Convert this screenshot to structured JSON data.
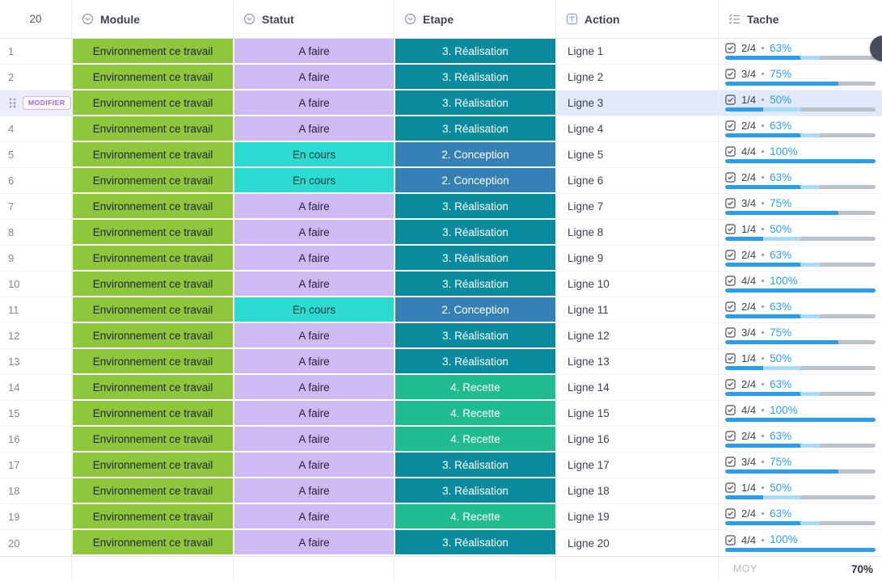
{
  "table": {
    "header": {
      "count": "20",
      "columns": [
        {
          "label": "Module",
          "icon": "dropdown-circle-icon"
        },
        {
          "label": "Statut",
          "icon": "dropdown-circle-icon"
        },
        {
          "label": "Etape",
          "icon": "dropdown-circle-icon"
        },
        {
          "label": "Action",
          "icon": "text-type-icon"
        },
        {
          "label": "Tache",
          "icon": "checklist-icon"
        }
      ]
    },
    "rows": [
      {
        "num": "1",
        "module": "Environnement ce travail",
        "statut": "A faire",
        "etape": "3. Réalisation",
        "action": "Ligne 1",
        "tache": {
          "fraction": "2/4",
          "percent_label": "63%",
          "done_pct": 50,
          "total_pct": 63
        }
      },
      {
        "num": "2",
        "module": "Environnement ce travail",
        "statut": "A faire",
        "etape": "3. Réalisation",
        "action": "Ligne 2",
        "tache": {
          "fraction": "3/4",
          "percent_label": "75%",
          "done_pct": 75,
          "total_pct": 75
        }
      },
      {
        "num": "3",
        "selected": true,
        "module": "Environnement ce travail",
        "statut": "A faire",
        "etape": "3. Réalisation",
        "action": "Ligne 3",
        "tache": {
          "fraction": "1/4",
          "percent_label": "50%",
          "done_pct": 25,
          "total_pct": 50
        }
      },
      {
        "num": "4",
        "module": "Environnement ce travail",
        "statut": "A faire",
        "etape": "3. Réalisation",
        "action": "Ligne 4",
        "tache": {
          "fraction": "2/4",
          "percent_label": "63%",
          "done_pct": 50,
          "total_pct": 63
        }
      },
      {
        "num": "5",
        "module": "Environnement ce travail",
        "statut": "En cours",
        "etape": "2. Conception",
        "action": "Ligne 5",
        "tache": {
          "fraction": "4/4",
          "percent_label": "100%",
          "done_pct": 100,
          "total_pct": 100
        }
      },
      {
        "num": "6",
        "module": "Environnement ce travail",
        "statut": "En cours",
        "etape": "2. Conception",
        "action": "Ligne 6",
        "tache": {
          "fraction": "2/4",
          "percent_label": "63%",
          "done_pct": 50,
          "total_pct": 63
        }
      },
      {
        "num": "7",
        "module": "Environnement ce travail",
        "statut": "A faire",
        "etape": "3. Réalisation",
        "action": "Ligne 7",
        "tache": {
          "fraction": "3/4",
          "percent_label": "75%",
          "done_pct": 75,
          "total_pct": 75
        }
      },
      {
        "num": "8",
        "module": "Environnement ce travail",
        "statut": "A faire",
        "etape": "3. Réalisation",
        "action": "Ligne 8",
        "tache": {
          "fraction": "1/4",
          "percent_label": "50%",
          "done_pct": 25,
          "total_pct": 50
        }
      },
      {
        "num": "9",
        "module": "Environnement ce travail",
        "statut": "A faire",
        "etape": "3. Réalisation",
        "action": "Ligne 9",
        "tache": {
          "fraction": "2/4",
          "percent_label": "63%",
          "done_pct": 50,
          "total_pct": 63
        }
      },
      {
        "num": "10",
        "module": "Environnement ce travail",
        "statut": "A faire",
        "etape": "3. Réalisation",
        "action": "Ligne 10",
        "tache": {
          "fraction": "4/4",
          "percent_label": "100%",
          "done_pct": 100,
          "total_pct": 100
        }
      },
      {
        "num": "11",
        "module": "Environnement ce travail",
        "statut": "En cours",
        "etape": "2. Conception",
        "action": "Ligne 11",
        "tache": {
          "fraction": "2/4",
          "percent_label": "63%",
          "done_pct": 50,
          "total_pct": 63
        }
      },
      {
        "num": "12",
        "module": "Environnement ce travail",
        "statut": "A faire",
        "etape": "3. Réalisation",
        "action": "Ligne 12",
        "tache": {
          "fraction": "3/4",
          "percent_label": "75%",
          "done_pct": 75,
          "total_pct": 75
        }
      },
      {
        "num": "13",
        "module": "Environnement ce travail",
        "statut": "A faire",
        "etape": "3. Réalisation",
        "action": "Ligne 13",
        "tache": {
          "fraction": "1/4",
          "percent_label": "50%",
          "done_pct": 25,
          "total_pct": 50
        }
      },
      {
        "num": "14",
        "module": "Environnement ce travail",
        "statut": "A faire",
        "etape": "4. Recette",
        "action": "Ligne 14",
        "tache": {
          "fraction": "2/4",
          "percent_label": "63%",
          "done_pct": 50,
          "total_pct": 63
        }
      },
      {
        "num": "15",
        "module": "Environnement ce travail",
        "statut": "A faire",
        "etape": "4. Recette",
        "action": "Ligne 15",
        "tache": {
          "fraction": "4/4",
          "percent_label": "100%",
          "done_pct": 100,
          "total_pct": 100
        }
      },
      {
        "num": "16",
        "module": "Environnement ce travail",
        "statut": "A faire",
        "etape": "4. Recette",
        "action": "Ligne 16",
        "tache": {
          "fraction": "2/4",
          "percent_label": "63%",
          "done_pct": 50,
          "total_pct": 63
        }
      },
      {
        "num": "17",
        "module": "Environnement ce travail",
        "statut": "A faire",
        "etape": "3. Réalisation",
        "action": "Ligne 17",
        "tache": {
          "fraction": "3/4",
          "percent_label": "75%",
          "done_pct": 75,
          "total_pct": 75
        }
      },
      {
        "num": "18",
        "module": "Environnement ce travail",
        "statut": "A faire",
        "etape": "3. Réalisation",
        "action": "Ligne 18",
        "tache": {
          "fraction": "1/4",
          "percent_label": "50%",
          "done_pct": 25,
          "total_pct": 50
        }
      },
      {
        "num": "19",
        "module": "Environnement ce travail",
        "statut": "A faire",
        "etape": "4. Recette",
        "action": "Ligne 19",
        "tache": {
          "fraction": "2/4",
          "percent_label": "63%",
          "done_pct": 50,
          "total_pct": 63
        }
      },
      {
        "num": "20",
        "module": "Environnement ce travail",
        "statut": "A faire",
        "etape": "3. Réalisation",
        "action": "Ligne 20",
        "tache": {
          "fraction": "4/4",
          "percent_label": "100%",
          "done_pct": 100,
          "total_pct": 100
        }
      }
    ],
    "footer": {
      "label": "MOY",
      "value": "70%"
    }
  },
  "selected_row": {
    "modifier_label": "MODIFIER"
  },
  "colors": {
    "module": {
      "bg": "#8ec63c",
      "text": "#222831"
    },
    "statut": {
      "A faire": {
        "bg": "#cdbaf3",
        "text": "#262137"
      },
      "En cours": {
        "bg": "#29dbd0",
        "text": "#0e3c38"
      }
    },
    "etape": {
      "3. Réalisation": {
        "bg": "#0b8b9e",
        "text": "#ffffff"
      },
      "2. Conception": {
        "bg": "#3580b4",
        "text": "#ffffff"
      },
      "4. Recette": {
        "bg": "#21bb90",
        "text": "#ffffff"
      }
    },
    "progress": {
      "done": "#2b9ef3",
      "partial": "#a6dcfa",
      "rest": "#bac1c9"
    },
    "percent_text": "#2f9ef2",
    "selected_row_bg": "#e2e9fc",
    "accent_purple": "#a75ce3"
  }
}
